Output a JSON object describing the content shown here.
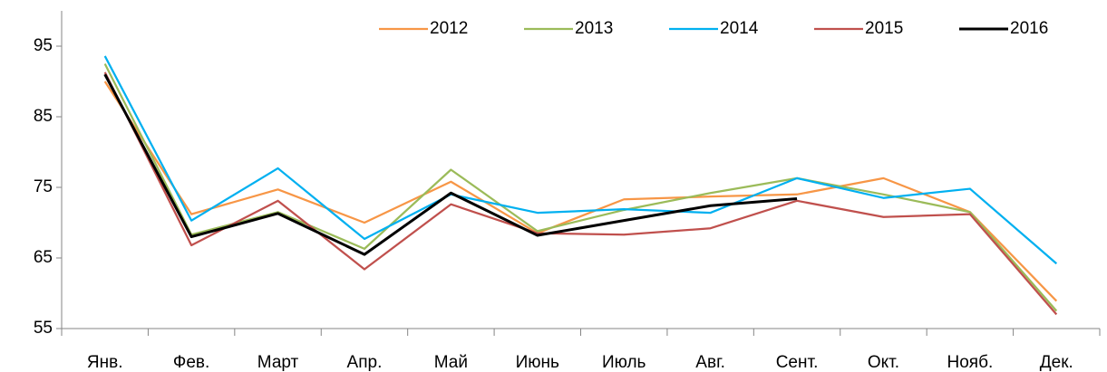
{
  "chart_data": {
    "type": "line",
    "categories": [
      "Янв.",
      "Фев.",
      "Март",
      "Апр.",
      "Май",
      "Июнь",
      "Июль",
      "Авг.",
      "Сент.",
      "Окт.",
      "Нояб.",
      "Дек."
    ],
    "series": [
      {
        "name": "2012",
        "color": "#f79646",
        "values": [
          90.0,
          71.2,
          74.7,
          70.0,
          75.8,
          68.5,
          73.3,
          73.7,
          74.0,
          76.3,
          71.5,
          58.9
        ]
      },
      {
        "name": "2013",
        "color": "#9bbb59",
        "values": [
          92.5,
          68.3,
          71.5,
          66.3,
          77.5,
          68.8,
          71.8,
          74.2,
          76.3,
          74.0,
          71.5,
          57.5
        ]
      },
      {
        "name": "2014",
        "color": "#00b0f0",
        "values": [
          93.6,
          70.3,
          77.7,
          67.7,
          74.0,
          71.4,
          71.9,
          71.4,
          76.3,
          73.5,
          74.8,
          64.2
        ]
      },
      {
        "name": "2015",
        "color": "#c0504d",
        "values": [
          91.3,
          66.8,
          73.1,
          63.4,
          72.6,
          68.5,
          68.3,
          69.2,
          73.1,
          70.8,
          71.2,
          57.0
        ]
      },
      {
        "name": "2016",
        "color": "#000000",
        "values": [
          91.0,
          68.0,
          71.3,
          65.5,
          74.2,
          68.2,
          70.3,
          72.4,
          73.4,
          null,
          null,
          null
        ]
      }
    ],
    "ylim": [
      55,
      100
    ],
    "yticks": [
      55,
      65,
      75,
      85,
      95
    ],
    "grid": false,
    "legend": "top-right"
  }
}
